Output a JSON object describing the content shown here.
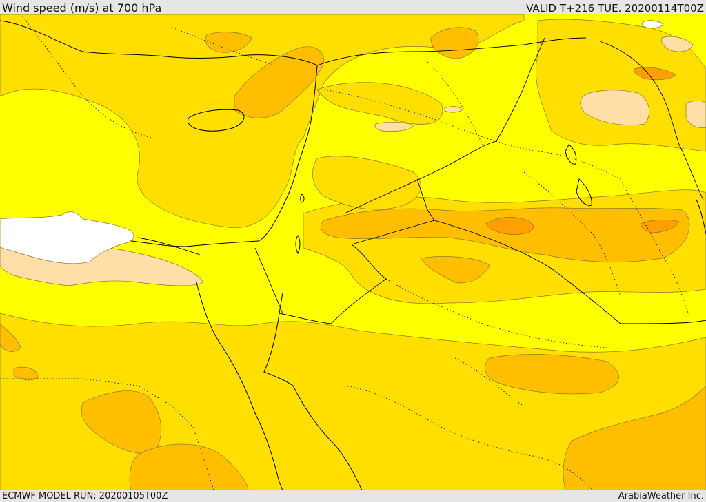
{
  "header": {
    "title": "Wind speed (m/s) at 700 hPa",
    "valid": "VALID T+216 TUE. 20200114T00Z"
  },
  "footer": {
    "model_run": "ECMWF MODEL RUN: 20200105T00Z",
    "credit": "ArabiaWeather Inc."
  },
  "colors": {
    "band_light": "#ffff00",
    "band_mid": "#ffdf00",
    "band_high": "#ffbf00",
    "band_higher": "#ffa000",
    "band_lowest": "#ffdfa8",
    "no_data": "#ffffff",
    "contour_line": "#8a7a20",
    "border_line": "#000000",
    "header_bg": "#e6e6e6"
  }
}
